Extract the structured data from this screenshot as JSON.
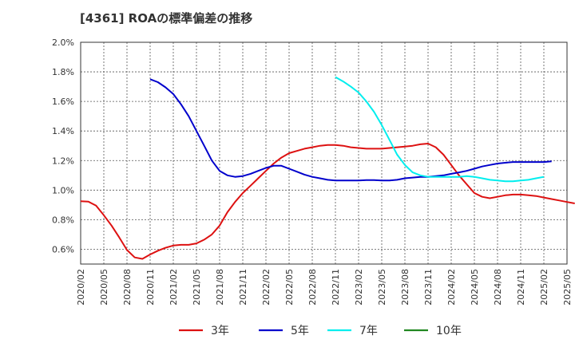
{
  "chart_data": {
    "type": "line",
    "title": "[4361]  ROAの標準偏差の推移",
    "xlabel": "",
    "ylabel": "",
    "ylim": [
      0.5,
      2.0
    ],
    "x_ticks": [
      "2020/02",
      "2020/05",
      "2020/08",
      "2020/11",
      "2021/02",
      "2021/05",
      "2021/08",
      "2021/11",
      "2022/02",
      "2022/05",
      "2022/08",
      "2022/11",
      "2023/02",
      "2023/05",
      "2023/08",
      "2023/11",
      "2024/02",
      "2024/05",
      "2024/08",
      "2024/11",
      "2025/02",
      "2025/05"
    ],
    "y_ticks": [
      "0.6%",
      "0.8%",
      "1.0%",
      "1.2%",
      "1.4%",
      "1.6%",
      "1.8%",
      "2.0%"
    ],
    "grid": true,
    "legend_position": "bottom",
    "series": [
      {
        "name": "3年",
        "color": "#dd1111",
        "start": "2020/02",
        "values": [
          0.925,
          0.922,
          0.895,
          0.83,
          0.76,
          0.68,
          0.595,
          0.545,
          0.535,
          0.565,
          0.59,
          0.61,
          0.625,
          0.63,
          0.63,
          0.64,
          0.665,
          0.7,
          0.76,
          0.85,
          0.92,
          0.98,
          1.03,
          1.08,
          1.13,
          1.18,
          1.22,
          1.25,
          1.265,
          1.28,
          1.29,
          1.3,
          1.305,
          1.305,
          1.3,
          1.29,
          1.285,
          1.28,
          1.28,
          1.28,
          1.285,
          1.29,
          1.295,
          1.3,
          1.31,
          1.315,
          1.29,
          1.24,
          1.17,
          1.1,
          1.04,
          0.98,
          0.955,
          0.945,
          0.955,
          0.965,
          0.97,
          0.97,
          0.965,
          0.96,
          0.95,
          0.94,
          0.93,
          0.92,
          0.91
        ]
      },
      {
        "name": "5年",
        "color": "#0000cc",
        "start": "2020/11",
        "values": [
          1.75,
          1.73,
          1.695,
          1.65,
          1.58,
          1.5,
          1.4,
          1.3,
          1.2,
          1.13,
          1.1,
          1.09,
          1.095,
          1.11,
          1.13,
          1.15,
          1.165,
          1.165,
          1.145,
          1.125,
          1.105,
          1.09,
          1.08,
          1.07,
          1.065,
          1.065,
          1.065,
          1.065,
          1.068,
          1.068,
          1.065,
          1.065,
          1.07,
          1.08,
          1.085,
          1.09,
          1.09,
          1.095,
          1.1,
          1.11,
          1.12,
          1.13,
          1.145,
          1.16,
          1.17,
          1.18,
          1.185,
          1.19,
          1.19,
          1.19,
          1.19,
          1.19,
          1.195
        ]
      },
      {
        "name": "7年",
        "color": "#00eeee",
        "start": "2022/11",
        "values": [
          1.765,
          1.735,
          1.7,
          1.66,
          1.6,
          1.53,
          1.44,
          1.34,
          1.24,
          1.17,
          1.12,
          1.1,
          1.09,
          1.09,
          1.09,
          1.09,
          1.09,
          1.095,
          1.09,
          1.08,
          1.07,
          1.065,
          1.06,
          1.06,
          1.065,
          1.07,
          1.08,
          1.09
        ]
      },
      {
        "name": "10年",
        "color": "#228822",
        "start": "2025/02",
        "values": []
      }
    ]
  }
}
